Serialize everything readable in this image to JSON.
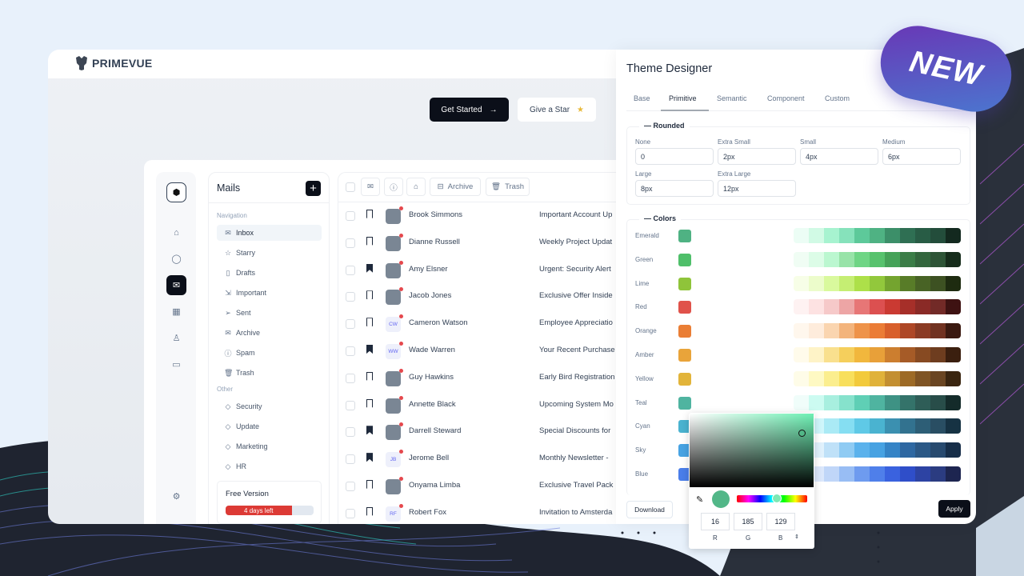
{
  "brand": {
    "name": "PRIMEVUE"
  },
  "hero": {
    "get_started": "Get Started",
    "give_star": "Give a Star"
  },
  "badge": "NEW",
  "rail": {
    "items": [
      "home-icon",
      "chat-icon",
      "inbox-icon",
      "apps-icon",
      "user-icon",
      "video-icon"
    ],
    "active": 2,
    "settings": "gear-icon"
  },
  "mails": {
    "title": "Mails",
    "nav_label": "Navigation",
    "nav": [
      {
        "label": "Inbox",
        "icon": "inbox-icon",
        "active": true
      },
      {
        "label": "Starry",
        "icon": "star-icon"
      },
      {
        "label": "Drafts",
        "icon": "file-icon"
      },
      {
        "label": "Important",
        "icon": "important-icon"
      },
      {
        "label": "Sent",
        "icon": "send-icon"
      },
      {
        "label": "Archive",
        "icon": "archive-icon"
      },
      {
        "label": "Spam",
        "icon": "info-icon"
      },
      {
        "label": "Trash",
        "icon": "trash-icon"
      }
    ],
    "other_label": "Other",
    "other": [
      {
        "label": "Security"
      },
      {
        "label": "Update"
      },
      {
        "label": "Marketing"
      },
      {
        "label": "HR"
      }
    ],
    "plan": {
      "title": "Free Version",
      "progress_label": "4 days left",
      "progress": 0.75
    }
  },
  "toolbar": {
    "archive": "Archive",
    "trash": "Trash"
  },
  "emails": [
    {
      "name": "Brook Simmons",
      "subject": "Important Account Up",
      "bookmarked": false
    },
    {
      "name": "Dianne Russell",
      "subject": "Weekly Project Updat",
      "bookmarked": false
    },
    {
      "name": "Amy Elsner",
      "subject": "Urgent: Security Alert",
      "bookmarked": true
    },
    {
      "name": "Jacob Jones",
      "subject": "Exclusive Offer Inside",
      "bookmarked": false
    },
    {
      "name": "Cameron Watson",
      "initials": "CW",
      "subject": "Employee Appreciatio",
      "bookmarked": false
    },
    {
      "name": "Wade Warren",
      "initials": "WW",
      "subject": "Your Recent Purchase",
      "bookmarked": true
    },
    {
      "name": "Guy Hawkins",
      "subject": "Early Bird Registration",
      "bookmarked": false
    },
    {
      "name": "Annette Black",
      "subject": "Upcoming System Mo",
      "bookmarked": false
    },
    {
      "name": "Darrell Steward",
      "subject": "Special Discounts for",
      "bookmarked": true
    },
    {
      "name": "Jerome Bell",
      "initials": "JB",
      "subject": "Monthly Newsletter -",
      "bookmarked": true
    },
    {
      "name": "Onyama Limba",
      "subject": "Exclusive Travel Pack",
      "bookmarked": false
    },
    {
      "name": "Robert Fox",
      "initials": "RF",
      "subject": "Invitation to Amsterda",
      "bookmarked": false
    }
  ],
  "theme": {
    "title": "Theme Designer",
    "tabs": [
      "Base",
      "Primitive",
      "Semantic",
      "Component",
      "Custom"
    ],
    "active_tab": 1,
    "rounded": {
      "legend": "Rounded",
      "fields": [
        {
          "label": "None",
          "value": "0"
        },
        {
          "label": "Extra Small",
          "value": "2px"
        },
        {
          "label": "Small",
          "value": "4px"
        },
        {
          "label": "Medium",
          "value": "6px"
        },
        {
          "label": "Large",
          "value": "8px"
        },
        {
          "label": "Extra Large",
          "value": "12px"
        }
      ]
    },
    "colors_legend": "Colors",
    "colors": [
      {
        "name": "Emerald",
        "swatch": "#4fb283",
        "shades": [
          "#ecfdf5",
          "#d1fae5",
          "#a7f3d0",
          "#86e2bb",
          "#5dc99a",
          "#4fb283",
          "#3c8f69",
          "#2f6f53",
          "#285c45",
          "#234d3b",
          "#13291f"
        ]
      },
      {
        "name": "Green",
        "swatch": "#4fbf6a",
        "shades": [
          "#f0fdf4",
          "#dcfce7",
          "#bbf7d0",
          "#98e3a8",
          "#6fd585",
          "#57c26d",
          "#45a258",
          "#3b7d47",
          "#33663d",
          "#2e5436",
          "#162c1b"
        ]
      },
      {
        "name": "Lime",
        "swatch": "#8fc43a",
        "shades": [
          "#f7fee7",
          "#ecfccb",
          "#d9f99d",
          "#c5ee73",
          "#ade049",
          "#92c83c",
          "#74a42f",
          "#587c28",
          "#486325",
          "#3d5122",
          "#1e2b10"
        ]
      },
      {
        "name": "Red",
        "swatch": "#e0524a",
        "shades": [
          "#fef2f2",
          "#fde2e2",
          "#f6c9c9",
          "#eda5a5",
          "#e77676",
          "#dc5050",
          "#ca3a32",
          "#a62f29",
          "#8a2a26",
          "#722a27",
          "#3e1212"
        ]
      },
      {
        "name": "Orange",
        "swatch": "#ea7e35",
        "shades": [
          "#fff7ed",
          "#feecdc",
          "#fad5b0",
          "#f3b47c",
          "#ee934a",
          "#eb7c36",
          "#d85f2b",
          "#ae4726",
          "#8b3b24",
          "#713221",
          "#3b1910"
        ]
      },
      {
        "name": "Amber",
        "swatch": "#e9a43a",
        "shades": [
          "#fffbeb",
          "#fef3c7",
          "#f9e08e",
          "#f5cf5c",
          "#f1b73d",
          "#e8a039",
          "#cc7e2f",
          "#a65b27",
          "#874a22",
          "#6e3d1f",
          "#3b1f0f"
        ]
      },
      {
        "name": "Yellow",
        "swatch": "#e2b43a",
        "shades": [
          "#fefce8",
          "#fef9c3",
          "#fbee8e",
          "#f8df5c",
          "#f2ca3c",
          "#e0b23a",
          "#c38f31",
          "#9d6a26",
          "#7f5424",
          "#6a4522",
          "#3a2510"
        ]
      },
      {
        "name": "Teal",
        "swatch": "#4fb4a0",
        "shades": [
          "#f0fdfa",
          "#ccfbf1",
          "#a8efdf",
          "#86e2cc",
          "#5fcfb5",
          "#4fb4a0",
          "#3e9284",
          "#34736a",
          "#2e5d57",
          "#284d49",
          "#142b2a"
        ]
      },
      {
        "name": "Cyan",
        "swatch": "#4ab3d0",
        "shades": [
          "#ecfeff",
          "#cff6fb",
          "#aaeaf5",
          "#85def2",
          "#5fc9e6",
          "#4ab3d0",
          "#3b90b0",
          "#32728f",
          "#2d5e76",
          "#294e63",
          "#163243"
        ]
      },
      {
        "name": "Sky",
        "swatch": "#47a3e3",
        "shades": [
          "#f0f9ff",
          "#e0f1fc",
          "#bfe1f8",
          "#8fcbf3",
          "#5bb2ec",
          "#47a2e2",
          "#3584c6",
          "#2e68a2",
          "#2b5886",
          "#284a6f",
          "#172e49"
        ]
      },
      {
        "name": "Blue",
        "swatch": "#4a7eea",
        "shades": [
          "#eff6ff",
          "#dbe7fb",
          "#c0d6f8",
          "#98bdf4",
          "#6e9bef",
          "#4f7fea",
          "#3a62df",
          "#2f4ec9",
          "#2d43a3",
          "#2b3c81",
          "#1d2550"
        ]
      }
    ],
    "picker": {
      "r": "16",
      "g": "185",
      "b": "129",
      "r_label": "R",
      "g_label": "G",
      "b_label": "B",
      "color": "#52b788"
    },
    "download": "Download",
    "apply": "Apply"
  }
}
